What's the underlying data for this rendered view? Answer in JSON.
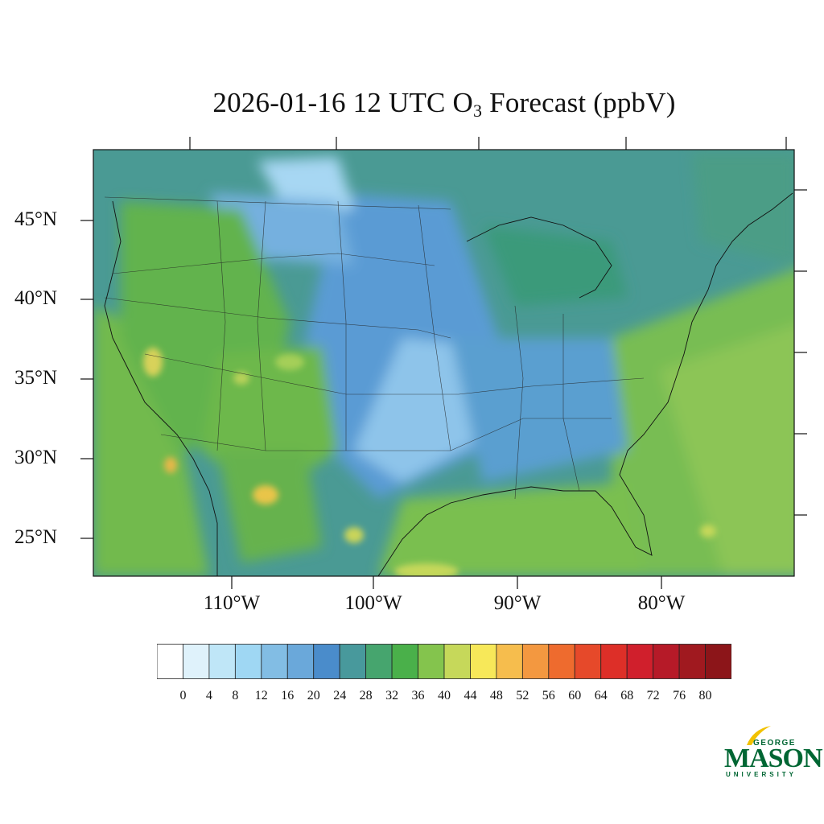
{
  "title": {
    "prefix": "2026-01-16 12 UTC O",
    "subscript": "3",
    "suffix": " Forecast (ppbV)"
  },
  "map": {
    "lat_labels": [
      "45°N",
      "40°N",
      "35°N",
      "30°N",
      "25°N"
    ],
    "lon_labels": [
      "110°W",
      "100°W",
      "90°W",
      "80°W"
    ]
  },
  "legend": {
    "tick_labels": [
      "0",
      "4",
      "8",
      "12",
      "16",
      "20",
      "24",
      "28",
      "32",
      "36",
      "40",
      "44",
      "48",
      "52",
      "56",
      "60",
      "64",
      "68",
      "72",
      "76",
      "80"
    ],
    "colors": [
      "#ffffff",
      "#dff2fb",
      "#bfe6f7",
      "#9fd7f3",
      "#82bde4",
      "#6aa8da",
      "#4a8ccb",
      "#48999c",
      "#46a56e",
      "#4ab04a",
      "#84c44d",
      "#c6d85a",
      "#f7e859",
      "#f6bd4d",
      "#f39840",
      "#ee6b2e",
      "#e6492a",
      "#dd2f28",
      "#d01f2c",
      "#b61a28",
      "#a0191f",
      "#8c1519"
    ]
  },
  "logo": {
    "top": "GEORGE",
    "main": "MASON",
    "bottom": "UNIVERSITY"
  }
}
